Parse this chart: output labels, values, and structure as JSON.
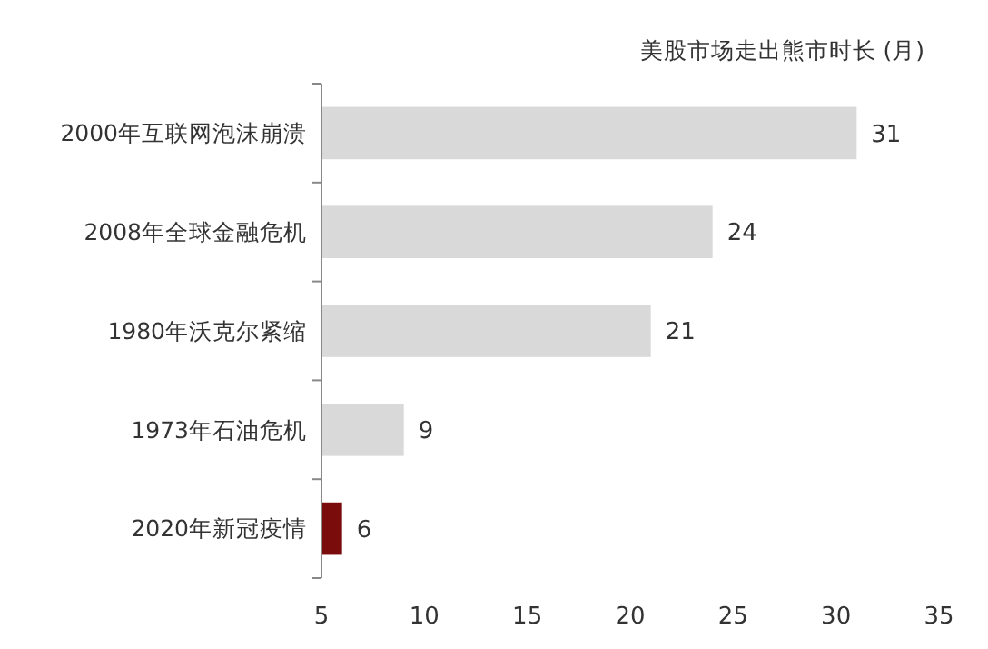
{
  "chart_data": {
    "type": "bar",
    "orientation": "horizontal",
    "title": "美股市场走出熊市时长 (月)",
    "categories": [
      "2000年互联网泡沫崩溃",
      "2008年全球金融危机",
      "1980年沃克尔紧缩",
      "1973年石油危机",
      "2020年新冠疫情"
    ],
    "values": [
      31,
      24,
      21,
      9,
      6
    ],
    "colors": [
      "#d9d9d9",
      "#d9d9d9",
      "#d9d9d9",
      "#d9d9d9",
      "#7b0c0c"
    ],
    "xlim": [
      5,
      35
    ],
    "xticks": [
      5,
      10,
      15,
      20,
      25,
      30,
      35
    ],
    "data_labels": true
  }
}
